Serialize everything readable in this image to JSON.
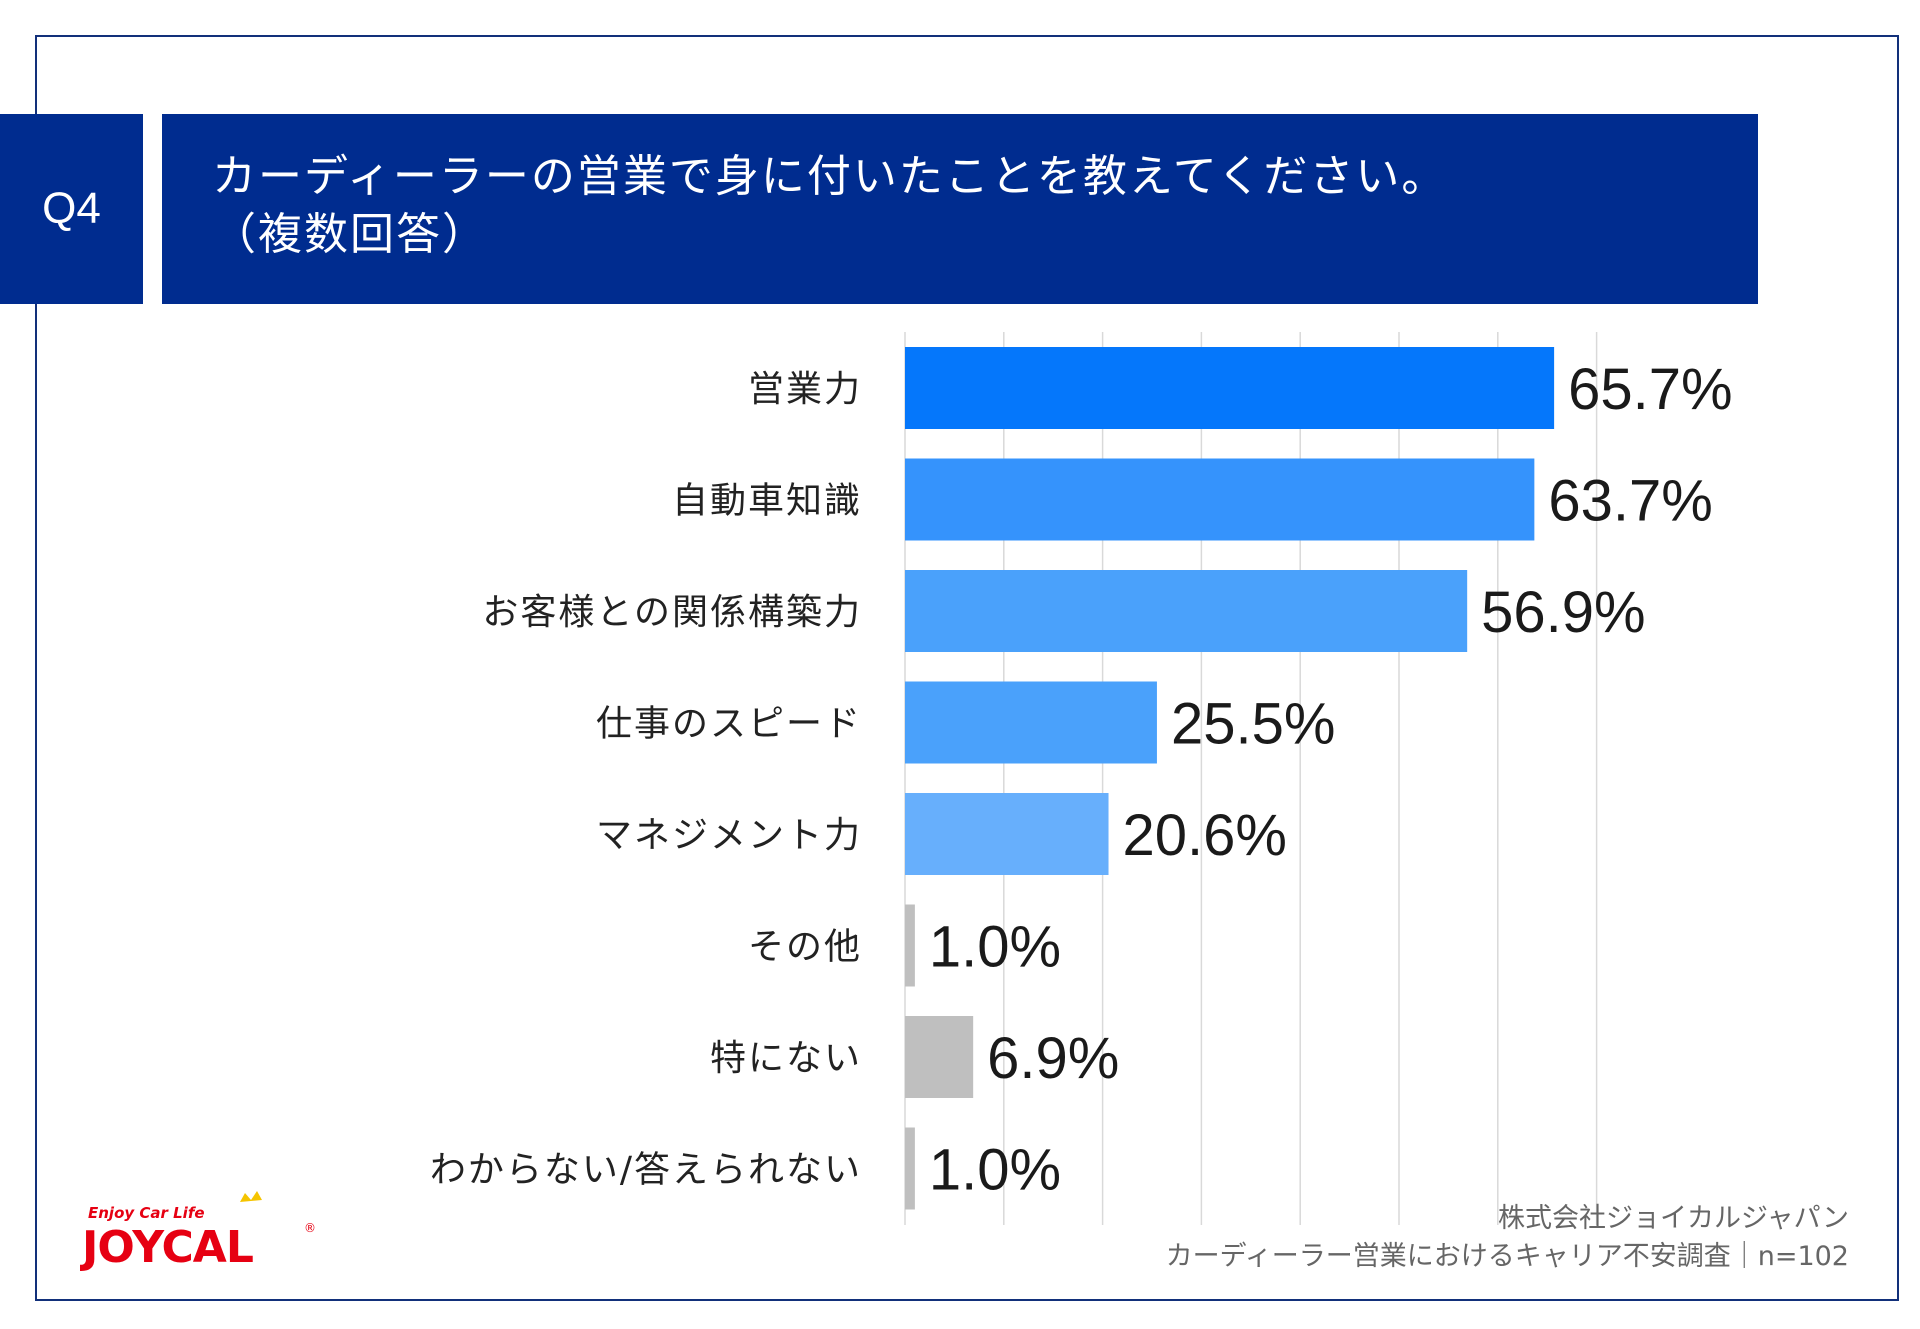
{
  "question_label": "Q4",
  "title_line1": "カーディーラーの営業で身に付いたことを教えてください。",
  "title_line2": "（複数回答）",
  "source_line1": "株式会社ジョイカルジャパン",
  "source_line2": "カーディーラー営業におけるキャリア不安調査｜n=102",
  "logo": {
    "tagline": "Enjoy Car Life",
    "brand": "JOYCAL",
    "reg": "®"
  },
  "colors": {
    "bar_top": "#0577fb",
    "bar_second": "#3593fc",
    "bar_mid": "#4aa1fb",
    "bar_light": "#67affc",
    "bar_gray": "#bfbfbf",
    "header": "#002c8f",
    "logo_red": "#e60012"
  },
  "chart_data": {
    "type": "bar",
    "orientation": "horizontal",
    "categories": [
      "営業力",
      "自動車知識",
      "お客様との関係構築力",
      "仕事のスピード",
      "マネジメント力",
      "その他",
      "特にない",
      "わからない/答えられない"
    ],
    "values": [
      65.7,
      63.7,
      56.9,
      25.5,
      20.6,
      1.0,
      6.9,
      1.0
    ],
    "value_labels": [
      "65.7%",
      "63.7%",
      "56.9%",
      "25.5%",
      "20.6%",
      "1.0%",
      "6.9%",
      "1.0%"
    ],
    "bar_colors": [
      "#0577fb",
      "#3593fc",
      "#4aa1fb",
      "#4aa1fb",
      "#67affc",
      "#bfbfbf",
      "#bfbfbf",
      "#bfbfbf"
    ],
    "xlim": [
      0,
      70
    ],
    "grid": true,
    "title": "",
    "xlabel": "",
    "ylabel": ""
  }
}
